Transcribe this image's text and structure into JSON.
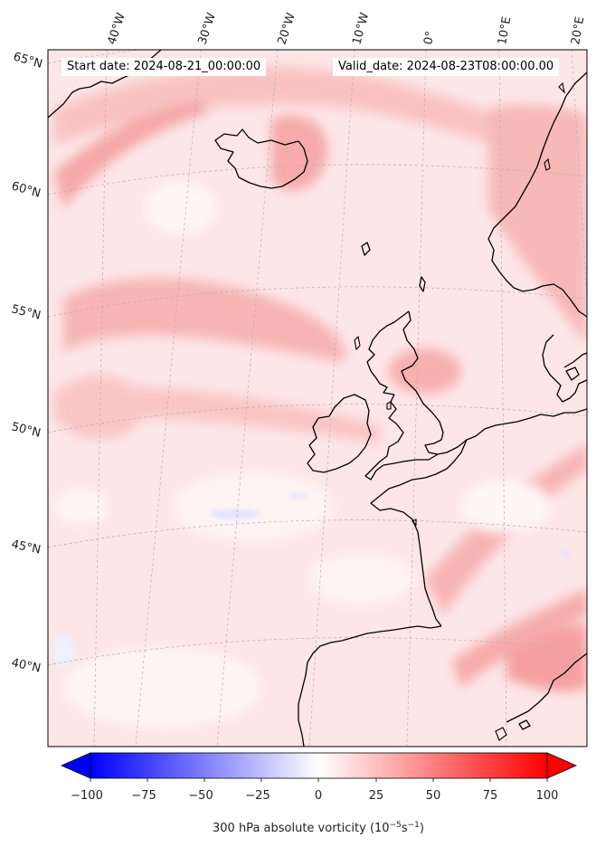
{
  "header": {
    "start_date": "Start date: 2024-08-21_00:00:00",
    "valid_date": "Valid_date: 2024-08-23T08:00:00.00"
  },
  "map": {
    "lon_labels": [
      "40°W",
      "30°W",
      "20°W",
      "10°W",
      "0°",
      "10°E",
      "20°E"
    ],
    "lat_labels": [
      "65°N",
      "60°N",
      "55°N",
      "50°N",
      "45°N",
      "40°N"
    ],
    "field": "300 hPa absolute vorticity",
    "colormap": "bwr",
    "coastline_color": "#000000",
    "gridline_color": "#aaaaaa"
  },
  "colorbar": {
    "ticks": [
      "−100",
      "−75",
      "−50",
      "−25",
      "0",
      "25",
      "50",
      "75",
      "100"
    ],
    "min": -100,
    "max": 100,
    "label_main": "300 hPa absolute vorticity (10",
    "label_exp1": "−5",
    "label_mid": "s",
    "label_exp2": "−1",
    "label_end": ")",
    "extend": "both"
  }
}
